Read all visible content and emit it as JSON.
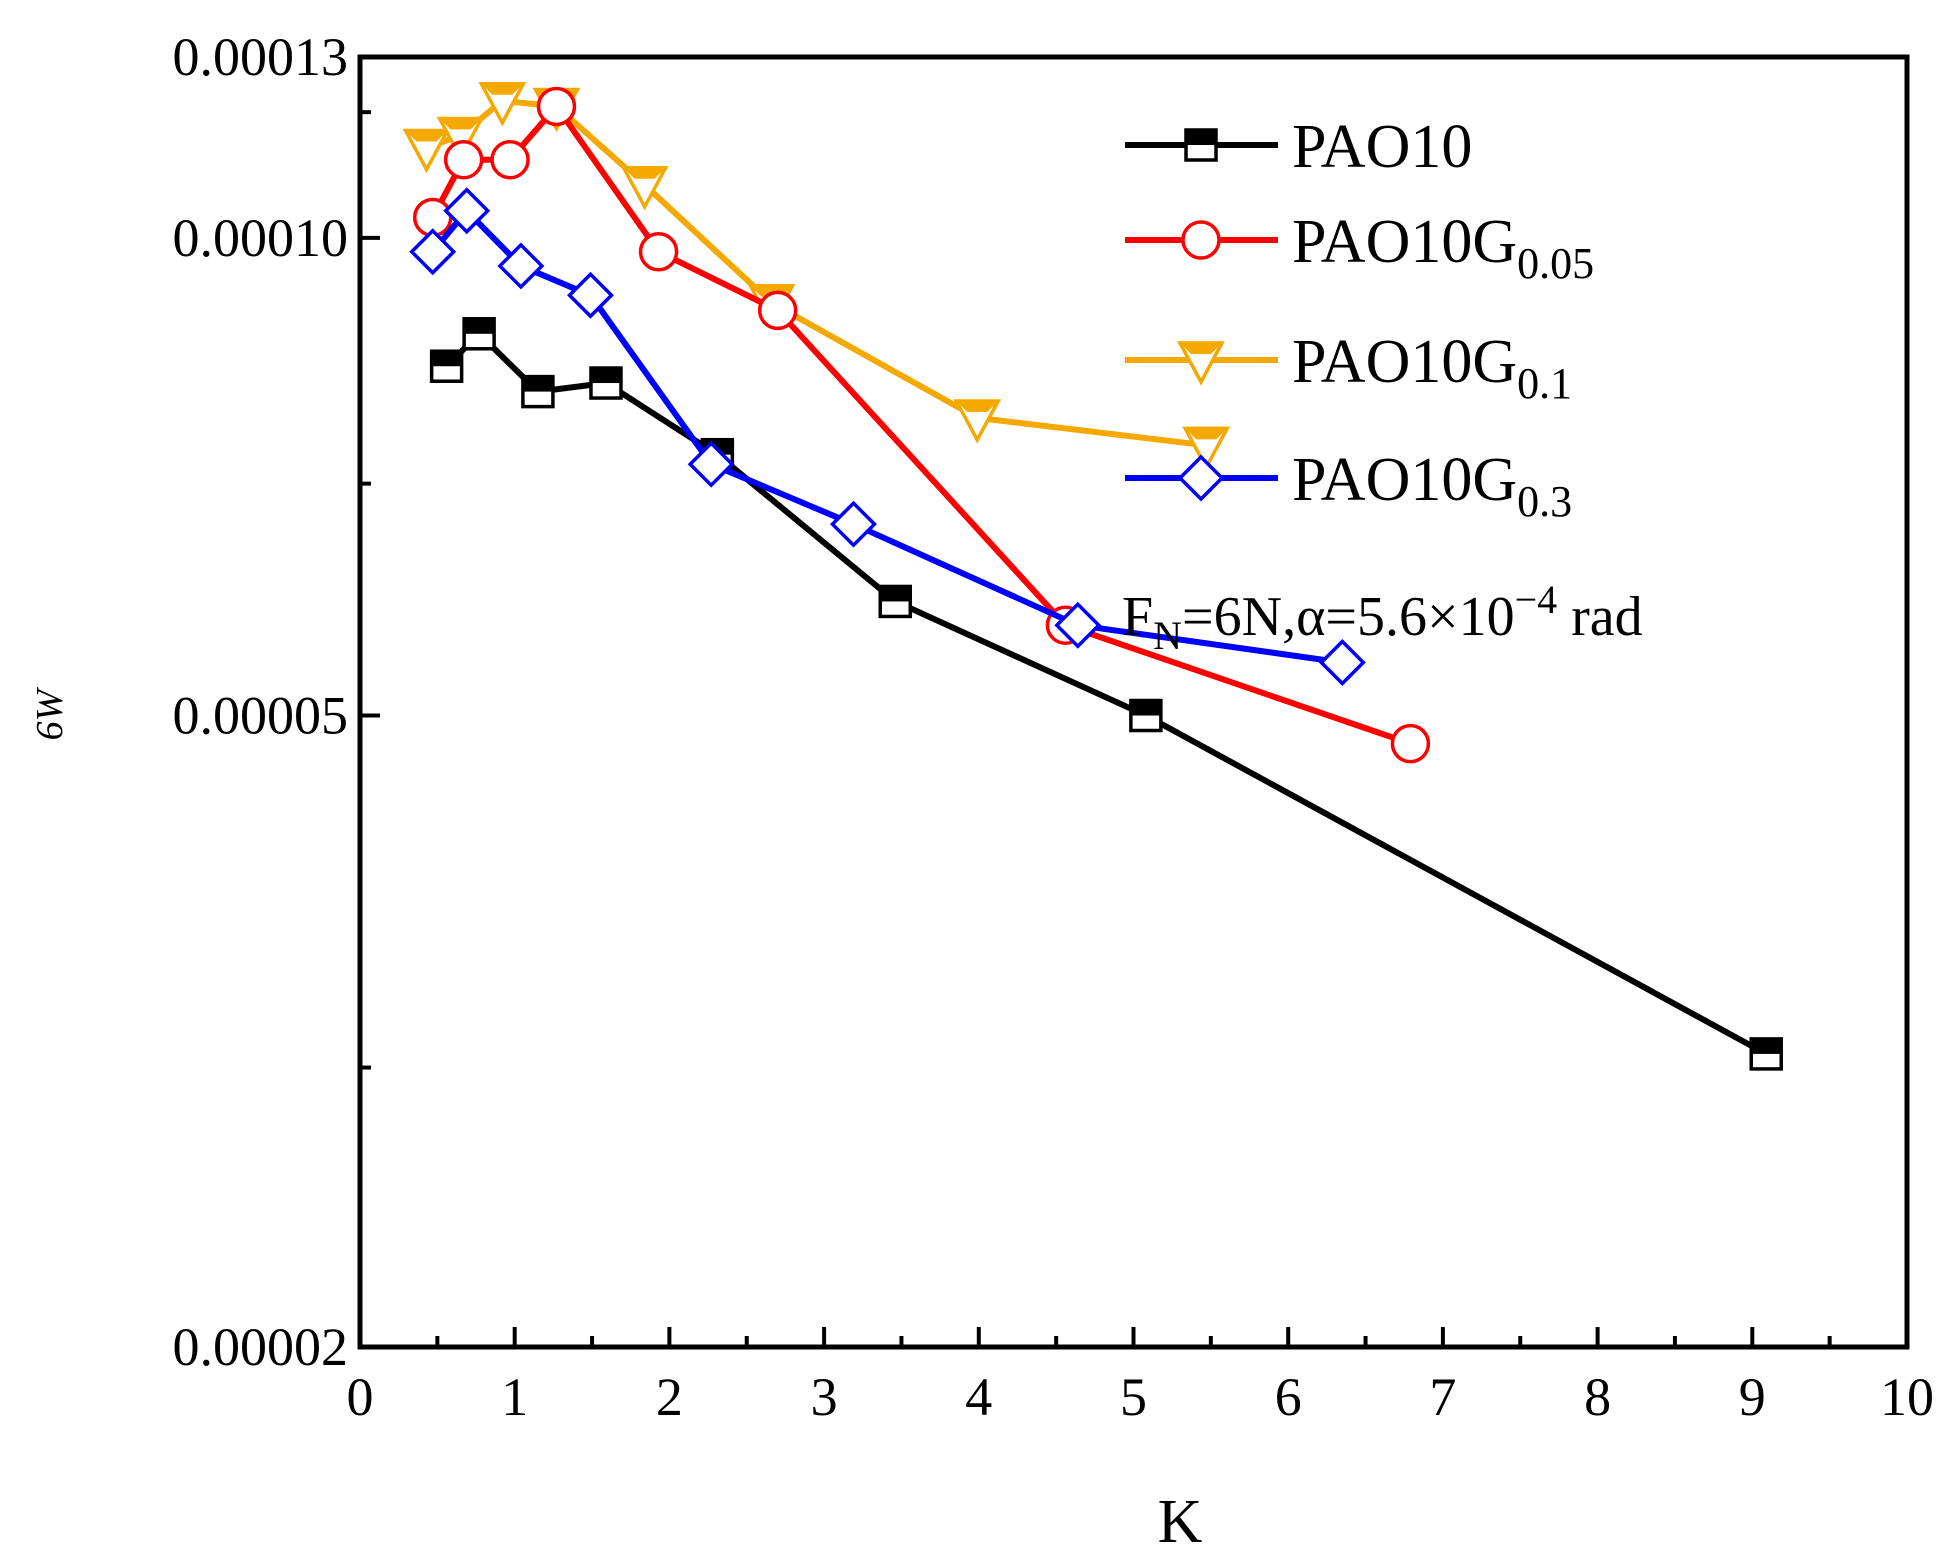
{
  "chart_data": {
    "type": "line",
    "title": "",
    "xlabel": "K",
    "ylabel": "6W",
    "xlim": [
      0,
      10
    ],
    "ylim": [
      2e-05,
      0.00013
    ],
    "x_ticks": [
      "0",
      "1",
      "2",
      "3",
      "4",
      "5",
      "6",
      "7",
      "8",
      "9",
      "10"
    ],
    "y_ticks": [
      "0.00002",
      "0.00005",
      "0.00010",
      "0.00013"
    ],
    "y_tick_values": [
      2e-05,
      5e-05,
      0.0001,
      0.00013
    ],
    "y_scale": "log",
    "legend_position": "top-right",
    "annotation": {
      "prefix": "F",
      "prefix_sub": "N",
      "middle": "=6N,α=5.6×10",
      "sup": "−4",
      "suffix": " rad"
    },
    "series": [
      {
        "name": "PAO10",
        "name_base": "PAO10",
        "name_sub": "",
        "color": "#000000",
        "marker": "half-filled-square",
        "x": [
          0.56,
          0.77,
          1.15,
          1.59,
          2.31,
          3.46,
          5.08,
          9.09
        ],
        "y": [
          8.3e-05,
          8.7e-05,
          8e-05,
          8.1e-05,
          7.3e-05,
          5.9e-05,
          5e-05,
          3.06e-05
        ]
      },
      {
        "name": "PAO10G0.05",
        "name_base": "PAO10G",
        "name_sub": "0.05",
        "color": "#ff0000",
        "marker": "open-circle",
        "x": [
          0.47,
          0.67,
          0.97,
          1.27,
          1.93,
          2.7,
          4.56,
          6.79
        ],
        "y": [
          0.000103,
          0.000112,
          0.000112,
          0.000121,
          9.8e-05,
          9e-05,
          5.7e-05,
          4.8e-05
        ]
      },
      {
        "name": "PAO10G0.1",
        "name_base": "PAO10G",
        "name_sub": "0.1",
        "color": "#f5a800",
        "marker": "open-triangle-down",
        "x": [
          0.43,
          0.65,
          0.92,
          1.27,
          1.84,
          2.66,
          3.99,
          5.47
        ],
        "y": [
          0.000114,
          0.000116,
          0.000122,
          0.000121,
          0.000108,
          9.1e-05,
          7.7e-05,
          7.4e-05
        ]
      },
      {
        "name": "PAO10G0.3",
        "name_base": "PAO10G",
        "name_sub": "0.3",
        "color": "#0000ff",
        "marker": "open-diamond",
        "x": [
          0.47,
          0.69,
          1.04,
          1.49,
          2.27,
          3.19,
          4.64,
          6.35
        ],
        "y": [
          9.8e-05,
          0.000104,
          9.6e-05,
          9.2e-05,
          7.2e-05,
          6.6e-05,
          5.7e-05,
          5.4e-05
        ]
      }
    ]
  }
}
